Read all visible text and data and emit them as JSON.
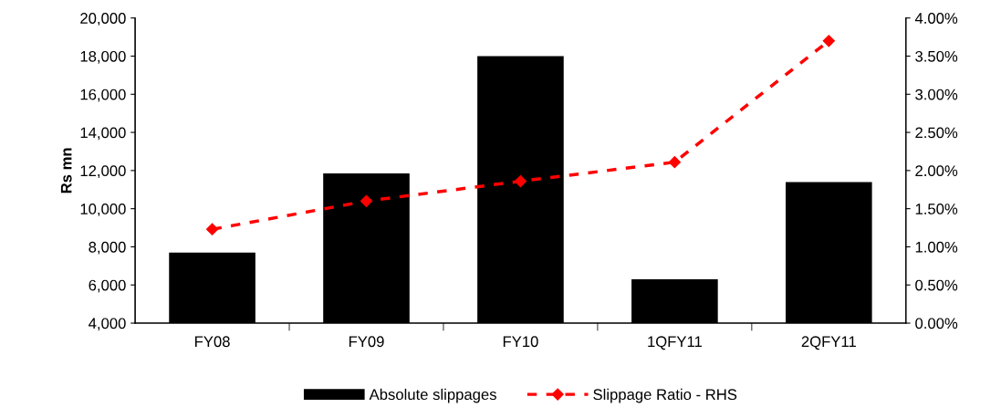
{
  "chart_data": {
    "type": "bar",
    "ylabel": "Rs mn",
    "categories": [
      "FY08",
      "FY09",
      "FY10",
      "1QFY11",
      "2QFY11"
    ],
    "series": [
      {
        "name": "Absolute slippages",
        "color": "#000000",
        "values": [
          7700,
          11850,
          18000,
          6300,
          11400
        ]
      },
      {
        "name": "Slippage Ratio - RHS",
        "type": "line",
        "axis": "y2",
        "color": "#ff0000",
        "marker": "diamond",
        "line_style": "dashed",
        "values": [
          1.23,
          1.6,
          1.86,
          2.11,
          3.7
        ]
      }
    ],
    "ylim": [
      4000,
      20000
    ],
    "yticks": [
      {
        "value": 4000,
        "label": "4,000"
      },
      {
        "value": 6000,
        "label": "6,000"
      },
      {
        "value": 8000,
        "label": "8,000"
      },
      {
        "value": 10000,
        "label": "10,000"
      },
      {
        "value": 12000,
        "label": "12,000"
      },
      {
        "value": 14000,
        "label": "14,000"
      },
      {
        "value": 16000,
        "label": "16,000"
      },
      {
        "value": 18000,
        "label": "18,000"
      },
      {
        "value": 20000,
        "label": "20,000"
      }
    ],
    "y2lim": [
      0,
      4
    ],
    "y2ticks": [
      {
        "value": 0,
        "label": "0.00%"
      },
      {
        "value": 0.5,
        "label": "0.50%"
      },
      {
        "value": 1,
        "label": "1.00%"
      },
      {
        "value": 1.5,
        "label": "1.50%"
      },
      {
        "value": 2,
        "label": "2.00%"
      },
      {
        "value": 2.5,
        "label": "2.50%"
      },
      {
        "value": 3,
        "label": "3.00%"
      },
      {
        "value": 3.5,
        "label": "3.50%"
      },
      {
        "value": 4,
        "label": "4.00%"
      }
    ],
    "grid": false,
    "legend": "bottom"
  }
}
